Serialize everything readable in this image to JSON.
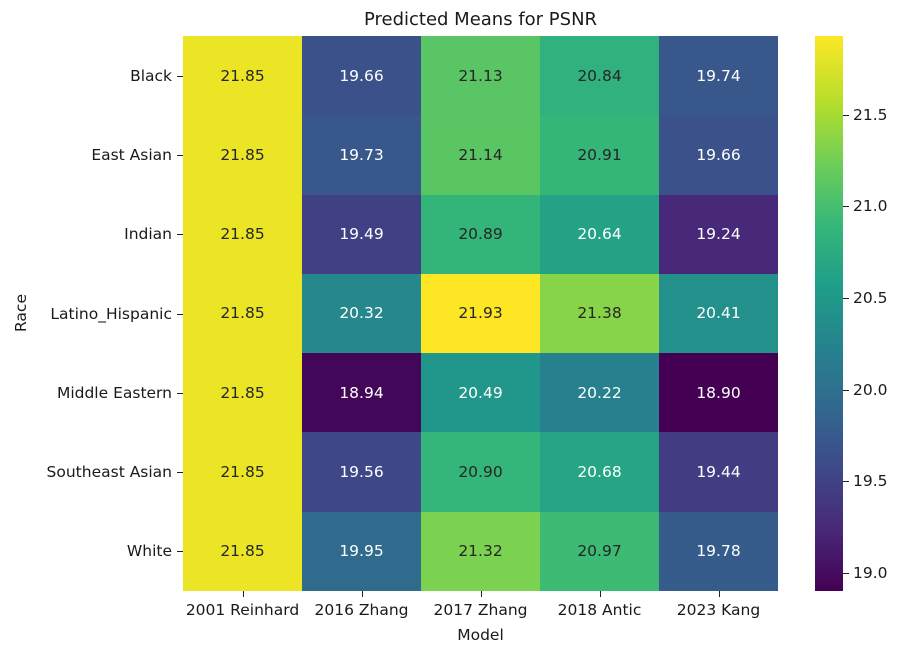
{
  "chart_data": {
    "type": "heatmap",
    "title": "Predicted Means for PSNR",
    "xlabel": "Model",
    "ylabel": "Race",
    "x_categories": [
      "2001 Reinhard",
      "2016 Zhang",
      "2017 Zhang",
      "2018 Antic",
      "2023 Kang"
    ],
    "y_categories": [
      "Black",
      "East Asian",
      "Indian",
      "Latino_Hispanic",
      "Middle Eastern",
      "Southeast Asian",
      "White"
    ],
    "values": [
      [
        21.85,
        19.66,
        21.13,
        20.84,
        19.74
      ],
      [
        21.85,
        19.73,
        21.14,
        20.91,
        19.66
      ],
      [
        21.85,
        19.49,
        20.89,
        20.64,
        19.24
      ],
      [
        21.85,
        20.32,
        21.93,
        21.38,
        20.41
      ],
      [
        21.85,
        18.94,
        20.49,
        20.22,
        18.9
      ],
      [
        21.85,
        19.56,
        20.9,
        20.68,
        19.44
      ],
      [
        21.85,
        19.95,
        21.32,
        20.97,
        19.78
      ]
    ],
    "colormap": "viridis",
    "colorbar": {
      "min": 18.9,
      "max": 21.93,
      "ticks": [
        "19.0",
        "19.5",
        "20.0",
        "20.5",
        "21.0",
        "21.5"
      ]
    },
    "annotated": true
  }
}
